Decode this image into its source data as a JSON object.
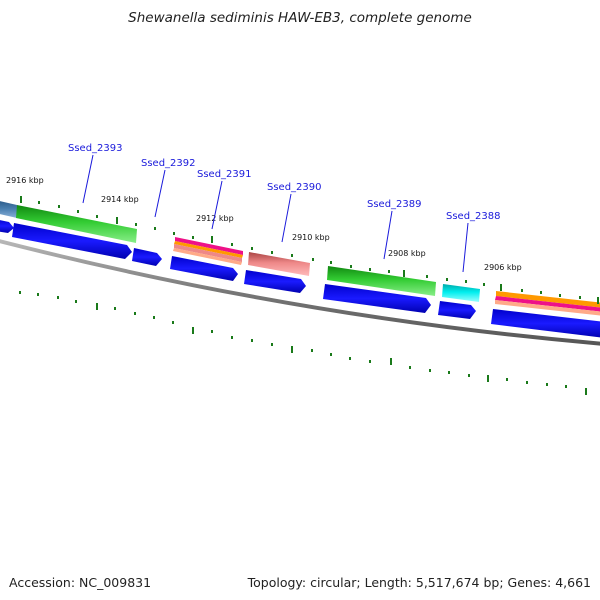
{
  "title": "Shewanella sediminis HAW-EB3, complete genome",
  "footer": {
    "accession": "Accession: NC_009831",
    "summary": "Topology: circular; Length: 5,517,674 bp; Genes: 4,661"
  },
  "gene_labels": [
    {
      "name": "Ssed_2393"
    },
    {
      "name": "Ssed_2392"
    },
    {
      "name": "Ssed_2391"
    },
    {
      "name": "Ssed_2390"
    },
    {
      "name": "Ssed_2389"
    },
    {
      "name": "Ssed_2388"
    }
  ],
  "kbp_labels": [
    "2916 kbp",
    "2914 kbp",
    "2912 kbp",
    "2910 kbp",
    "2908 kbp",
    "2906 kbp"
  ],
  "colors": {
    "gene_label": "#1a1adb",
    "cds_arrow": "#0000ee",
    "tick": "#1a7a1a",
    "backbone": "#808080",
    "green_feature": "#33cc33",
    "pink_feature": "#ee8888",
    "cyan_feature": "#00dddd",
    "magenta_feature": "#ee1188",
    "orange_feature": "#ff9900",
    "steel_feature": "#4a7fb0"
  }
}
